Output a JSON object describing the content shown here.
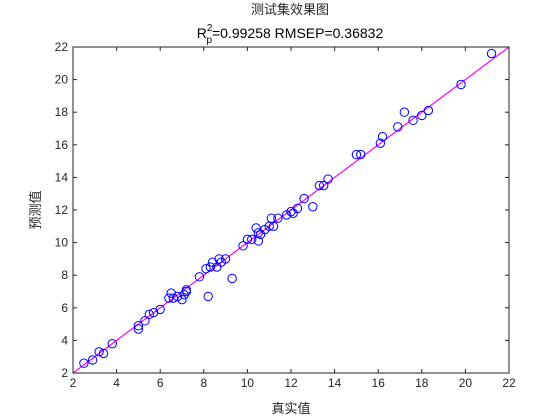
{
  "chart_data": {
    "type": "scatter",
    "title_main": "测试集效果图",
    "title_r2_label": "R",
    "title_r2_sup": "2",
    "title_r2_sub": "p",
    "title_metrics": "=0.99258  RMSEP=0.36832",
    "xlabel": "真实值",
    "ylabel": "预测值",
    "xlim": [
      2,
      22
    ],
    "ylim": [
      2,
      22
    ],
    "xticks": [
      2,
      4,
      6,
      8,
      10,
      12,
      14,
      16,
      18,
      20,
      22
    ],
    "yticks": [
      2,
      4,
      6,
      8,
      10,
      12,
      14,
      16,
      18,
      20,
      22
    ],
    "grid": false,
    "series": [
      {
        "marker": "circle",
        "color": "#0000ff",
        "x": [
          2.5,
          2.9,
          3.2,
          3.4,
          3.8,
          5.0,
          5.0,
          5.3,
          5.5,
          5.7,
          6.0,
          6.4,
          6.5,
          6.6,
          6.8,
          7.0,
          7.2,
          7.2,
          7.1,
          7.8,
          8.1,
          8.2,
          8.3,
          8.4,
          8.6,
          8.7,
          8.8,
          9.0,
          9.3,
          9.8,
          10.0,
          10.2,
          10.4,
          10.5,
          10.5,
          10.6,
          10.8,
          11.0,
          11.1,
          11.2,
          11.4,
          11.8,
          12.0,
          12.1,
          12.3,
          12.6,
          13.0,
          13.3,
          13.5,
          13.7,
          15.0,
          15.2,
          16.1,
          16.2,
          16.9,
          17.2,
          17.6,
          18.0,
          18.3,
          19.8,
          21.2
        ],
        "y": [
          2.6,
          2.8,
          3.3,
          3.2,
          3.8,
          4.9,
          4.7,
          5.2,
          5.6,
          5.7,
          5.9,
          6.6,
          6.9,
          6.6,
          6.7,
          6.5,
          7.1,
          7.0,
          6.8,
          7.9,
          8.4,
          6.7,
          8.5,
          8.8,
          8.5,
          9.0,
          8.8,
          9.0,
          7.8,
          9.8,
          10.2,
          10.2,
          10.9,
          10.1,
          10.6,
          10.5,
          10.8,
          11.0,
          11.5,
          11.0,
          11.5,
          11.7,
          11.9,
          11.8,
          12.1,
          12.7,
          12.2,
          13.5,
          13.5,
          13.9,
          15.4,
          15.4,
          16.1,
          16.5,
          17.1,
          18.0,
          17.5,
          17.8,
          18.1,
          19.7,
          21.6
        ]
      }
    ],
    "reference_line": {
      "color": "#ff00ff",
      "from": [
        2,
        2
      ],
      "to": [
        22,
        22
      ]
    }
  }
}
